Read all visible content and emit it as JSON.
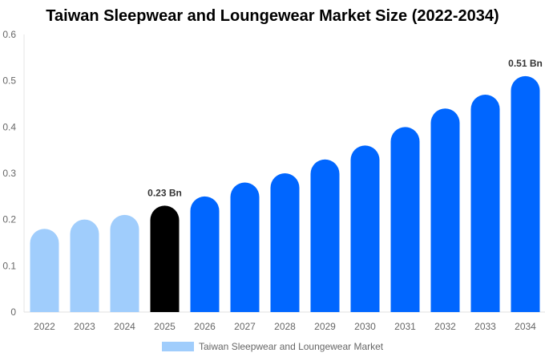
{
  "chart_data": {
    "type": "bar",
    "title": "Taiwan Sleepwear and Loungewear Market Size (2022-2034)",
    "categories": [
      "2022",
      "2023",
      "2024",
      "2025",
      "2026",
      "2027",
      "2028",
      "2029",
      "2030",
      "2031",
      "2032",
      "2033",
      "2034"
    ],
    "series": [
      {
        "name": "Taiwan Sleepwear and Loungewear Market",
        "values": [
          0.18,
          0.2,
          0.21,
          0.23,
          0.25,
          0.28,
          0.3,
          0.33,
          0.36,
          0.4,
          0.44,
          0.47,
          0.51
        ]
      }
    ],
    "ylim": [
      0,
      0.6
    ],
    "yticks": [
      "0",
      "0.1",
      "0.2",
      "0.3",
      "0.4",
      "0.5",
      "0.6"
    ],
    "data_labels": [
      {
        "category": "2025",
        "text": "0.23 Bn"
      },
      {
        "category": "2034",
        "text": "0.51 Bn"
      }
    ],
    "colors": {
      "historical": "#a0cdfc",
      "current": "#000000",
      "forecast": "#0066ff"
    },
    "legend_placement": "bottom",
    "grid": false
  }
}
